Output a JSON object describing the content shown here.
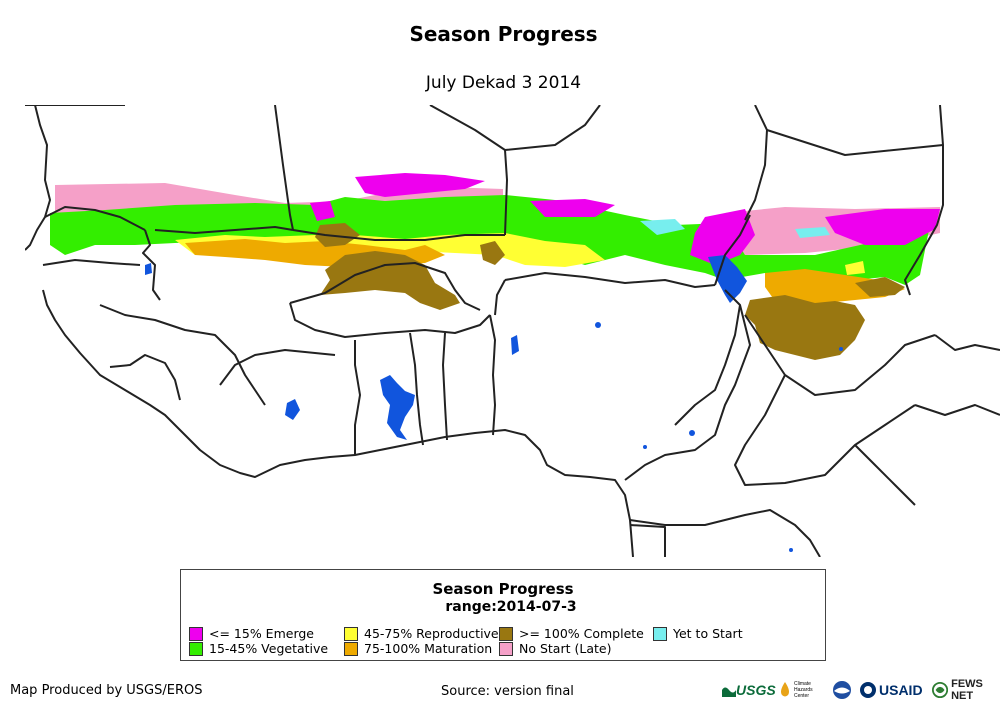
{
  "title": "Season Progress",
  "subtitle": "July Dekad 3 2014",
  "legend": {
    "title": "Season Progress",
    "range": "range:2014-07-3",
    "items": [
      {
        "label": "<= 15% Emerge",
        "color": "#ee00ee"
      },
      {
        "label": "15-45% Vegetative",
        "color": "#33ee00"
      },
      {
        "label": "45-75% Reproductive",
        "color": "#ffff33"
      },
      {
        "label": "75-100% Maturation",
        "color": "#eeaa00"
      },
      {
        "label": ">= 100% Complete",
        "color": "#997711"
      },
      {
        "label": "No Start (Late)",
        "color": "#f5a0c8"
      },
      {
        "label": "Yet to Start",
        "color": "#77eeee"
      }
    ]
  },
  "footer": {
    "produced_by": "Map Produced by USGS/EROS",
    "source": "Source: version final"
  },
  "logos": {
    "usgs": "USGS",
    "chc_line1": "Climate",
    "chc_line2": "Hazards",
    "chc_line3": "Center",
    "usaid": "USAID",
    "fews": "FEWS NET"
  },
  "colors": {
    "water": "#1155dd",
    "border": "#222222"
  }
}
